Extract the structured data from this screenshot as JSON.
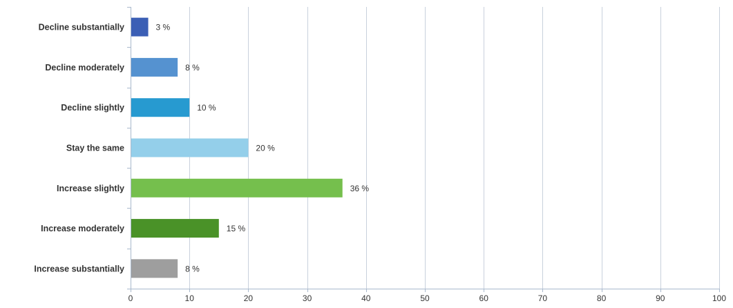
{
  "chart_data": {
    "type": "bar",
    "orientation": "horizontal",
    "categories": [
      "Decline substantially",
      "Decline moderately",
      "Decline slightly",
      "Stay the same",
      "Increase slightly",
      "Increase moderately",
      "Increase substantially"
    ],
    "values": [
      3,
      8,
      10,
      20,
      36,
      15,
      8
    ],
    "value_labels": [
      "3 %",
      "8 %",
      "10 %",
      "20 %",
      "36 %",
      "15 %",
      "8 %"
    ],
    "colors": [
      "#3b5fb5",
      "#5592d0",
      "#279ad0",
      "#94cfea",
      "#75bf4d",
      "#4a9228",
      "#9e9e9e"
    ],
    "xlim": [
      0,
      100
    ],
    "x_ticks": [
      0,
      10,
      20,
      30,
      40,
      50,
      60,
      70,
      80,
      90,
      100
    ],
    "grid": true,
    "title": "",
    "xlabel": "",
    "ylabel": ""
  }
}
